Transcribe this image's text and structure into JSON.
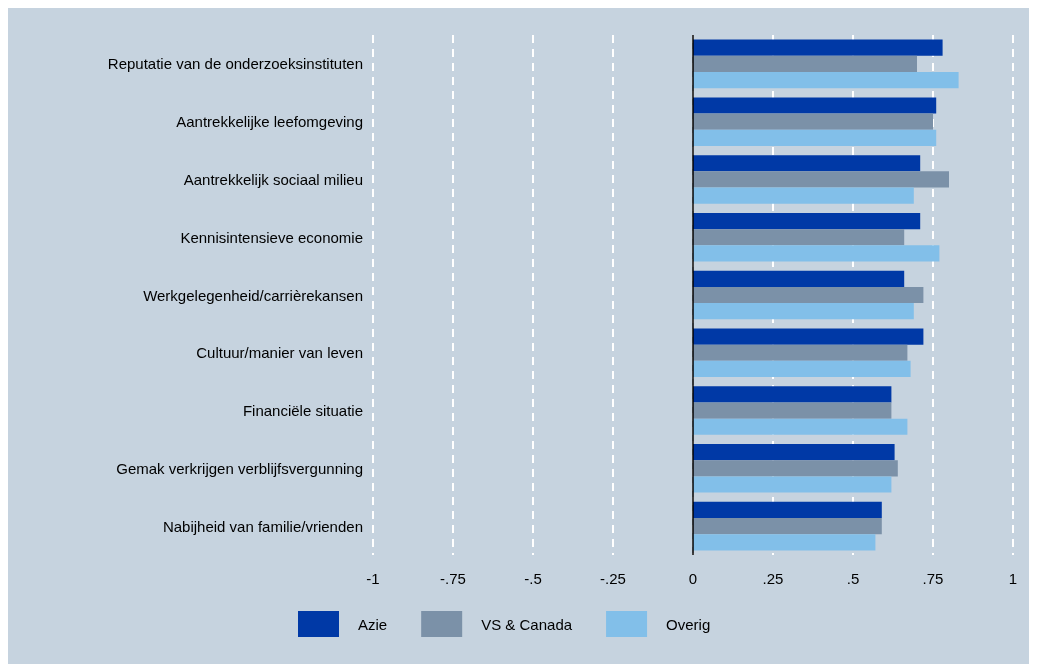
{
  "chart_data": {
    "type": "bar",
    "orientation": "horizontal",
    "categories": [
      "Reputatie van de onderzoeksinstituten",
      "Aantrekkelijke leefomgeving",
      "Aantrekkelijk sociaal milieu",
      "Kennisintensieve economie",
      "Werkgelegenheid/carrièrekansen",
      "Cultuur/manier van leven",
      "Financiële situatie",
      "Gemak verkrijgen verblijfsvergunning",
      "Nabijheid van familie/vrienden"
    ],
    "series": [
      {
        "name": "Azie",
        "color": "#0039a6",
        "values": [
          0.78,
          0.76,
          0.71,
          0.71,
          0.66,
          0.72,
          0.62,
          0.63,
          0.59
        ]
      },
      {
        "name": "VS & Canada",
        "color": "#7b91a8",
        "values": [
          0.7,
          0.75,
          0.8,
          0.66,
          0.72,
          0.67,
          0.62,
          0.64,
          0.59
        ]
      },
      {
        "name": "Overig",
        "color": "#82bfe9",
        "values": [
          0.83,
          0.76,
          0.69,
          0.77,
          0.69,
          0.68,
          0.67,
          0.62,
          0.57
        ]
      }
    ],
    "xlim": [
      -1,
      1
    ],
    "xticks": [
      -1,
      {
        "value": -0.75,
        "label": "-.75"
      },
      {
        "value": -0.5,
        "label": "-.5"
      },
      {
        "value": -0.25,
        "label": "-.25"
      },
      0,
      {
        "value": 0.25,
        "label": ".25"
      },
      {
        "value": 0.5,
        "label": ".5"
      },
      {
        "value": 0.75,
        "label": ".75"
      },
      1
    ],
    "grid": "x",
    "legend": "bottom",
    "ref_lines": [
      {
        "axis": "x",
        "value": 0,
        "color": "#000000"
      }
    ]
  }
}
